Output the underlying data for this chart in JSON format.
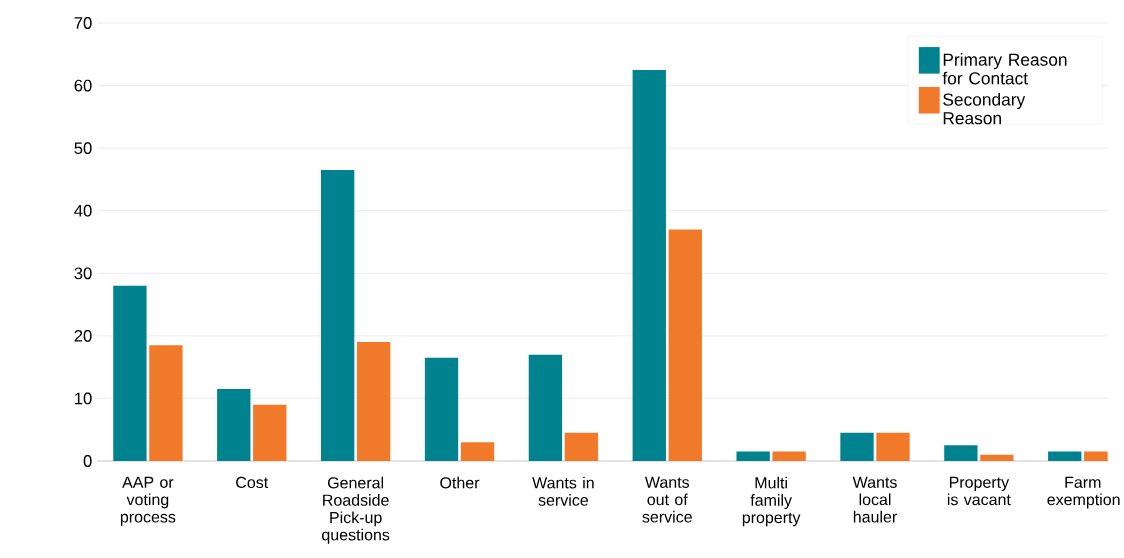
{
  "chart_data": {
    "type": "bar",
    "categories": [
      "AAP or voting process",
      "Cost",
      "General Roadside Pick-up questions",
      "Other",
      "Wants in service",
      "Wants out of service",
      "Multi family property",
      "Wants local hauler",
      "Property is vacant",
      "Farm exemption"
    ],
    "series": [
      {
        "name": "Primary Reason for Contact",
        "color": "#00838f",
        "values": [
          28,
          11.5,
          46.5,
          16.5,
          17,
          62.5,
          1.5,
          4.5,
          2.5,
          1.5
        ]
      },
      {
        "name": "Secondary Reason",
        "color": "#f07a2a",
        "values": [
          18.5,
          9,
          19,
          3,
          4.5,
          37,
          1.5,
          4.5,
          1,
          1.5
        ]
      }
    ],
    "ylim": [
      0,
      70
    ],
    "yticks": [
      0,
      10,
      20,
      30,
      40,
      50,
      60,
      70
    ],
    "grid": "y",
    "legend": "top right"
  }
}
